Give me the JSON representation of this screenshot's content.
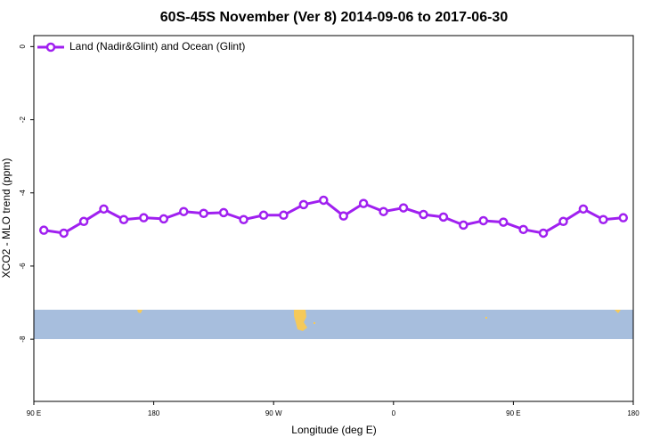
{
  "chart_data": {
    "type": "line",
    "title": "60S-45S November (Ver 8)   2014-09-06 to 2017-06-30",
    "x_label": "Longitude (deg E)",
    "y_label": "XCO2 - MLO trend (ppm)",
    "x": [
      97.5,
      112.5,
      127.5,
      142.5,
      157.5,
      172.5,
      187.5,
      202.5,
      217.5,
      232.5,
      247.5,
      262.5,
      277.5,
      292.5,
      307.5,
      322.5,
      337.5,
      352.5,
      367.5,
      382.5,
      397.5,
      412.5,
      427.5,
      442.5,
      457.5,
      472.5,
      487.5,
      502.5,
      517.5,
      532.5
    ],
    "series": [
      {
        "name": "Land (Nadir&Glint) and Ocean (Glint)",
        "color": "#a020f0",
        "values": [
          -5.02,
          -5.1,
          -4.78,
          -4.44,
          -4.73,
          -4.68,
          -4.71,
          -4.51,
          -4.56,
          -4.54,
          -4.73,
          -4.61,
          -4.61,
          -4.32,
          -4.2,
          -4.63,
          -4.29,
          -4.51,
          -4.41,
          -4.59,
          -4.66,
          -4.88,
          -4.76,
          -4.8,
          -5.0,
          -5.1,
          -4.78,
          -4.44,
          -4.73,
          -4.68
        ]
      }
    ],
    "xlim": [
      90,
      540
    ],
    "xticks": [
      {
        "value": 90,
        "label": "90 E"
      },
      {
        "value": 180,
        "label": "180"
      },
      {
        "value": 270,
        "label": "90 W"
      },
      {
        "value": 360,
        "label": "0"
      },
      {
        "value": 450,
        "label": "90 E"
      },
      {
        "value": 540,
        "label": "180"
      }
    ],
    "ylim": [
      -9.7,
      0.3
    ],
    "yticks": [
      0,
      -2,
      -4,
      -6,
      -8
    ],
    "legend": "top-left"
  }
}
